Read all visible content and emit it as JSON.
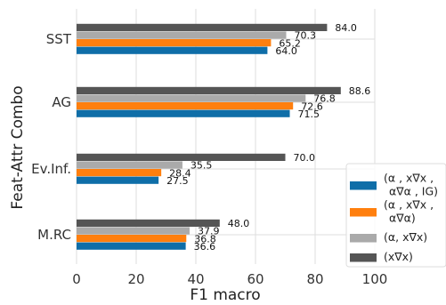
{
  "chart_data": {
    "type": "bar",
    "orientation": "horizontal",
    "xlabel": "F1 macro",
    "ylabel": "Feat-Attr Combo",
    "xlim": [
      0,
      100
    ],
    "xticks": [
      0,
      20,
      40,
      60,
      80,
      100
    ],
    "grid": true,
    "legend_position": "lower-right",
    "categories": [
      "SST",
      "AG",
      "Ev.Inf.",
      "M.RC"
    ],
    "series": [
      {
        "name": "(α , x∇x , α∇α , IG)",
        "legend_lines": [
          "(α , x∇x ,",
          "α∇α , IG)"
        ],
        "color": "#0f6ea8",
        "values": [
          64.0,
          71.5,
          27.5,
          36.6
        ]
      },
      {
        "name": "(α , x∇x , α∇α)",
        "legend_lines": [
          "(α , x∇x ,",
          "α∇α)"
        ],
        "color": "#ff7f0e",
        "values": [
          65.2,
          72.6,
          28.4,
          36.8
        ]
      },
      {
        "name": "(α, x∇x)",
        "legend_lines": [
          "(α, x∇x)"
        ],
        "color": "#aaaaaa",
        "values": [
          70.3,
          76.8,
          35.5,
          37.9
        ]
      },
      {
        "name": "(x∇x)",
        "legend_lines": [
          "(x∇x)"
        ],
        "color": "#555555",
        "values": [
          84.0,
          88.6,
          70.0,
          48.0
        ]
      }
    ]
  }
}
